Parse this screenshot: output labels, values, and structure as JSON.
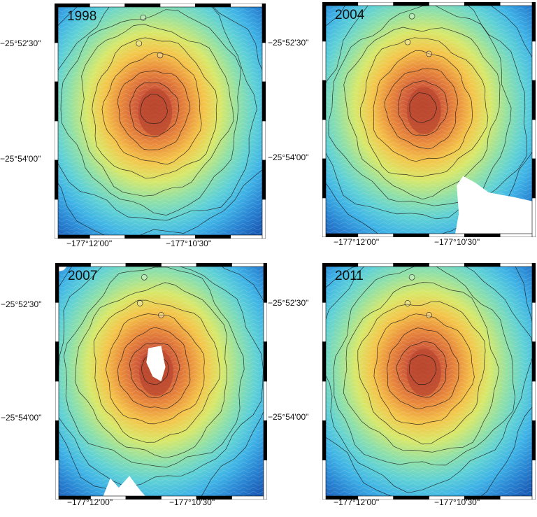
{
  "figure": {
    "panels": [
      {
        "year": "1998",
        "gap": "none"
      },
      {
        "year": "2004",
        "gap": "bottom-right"
      },
      {
        "year": "2007",
        "gap": "summit-and-bottom"
      },
      {
        "year": "2011",
        "gap": "none"
      }
    ],
    "latitude_labels": [
      "−25°52'30\"",
      "−25°54'00\""
    ],
    "longitude_labels": [
      "−177°12'00\"",
      "−177°10'30\""
    ],
    "contour_colors": {
      "line": "#1a1a1a"
    },
    "colormap": [
      "#1c5fb8",
      "#2a86d4",
      "#3fb3e6",
      "#5fd1d6",
      "#8fe0a8",
      "#d8e86a",
      "#f4c54a",
      "#e98a3c",
      "#cf5a3a",
      "#b8452f"
    ]
  }
}
